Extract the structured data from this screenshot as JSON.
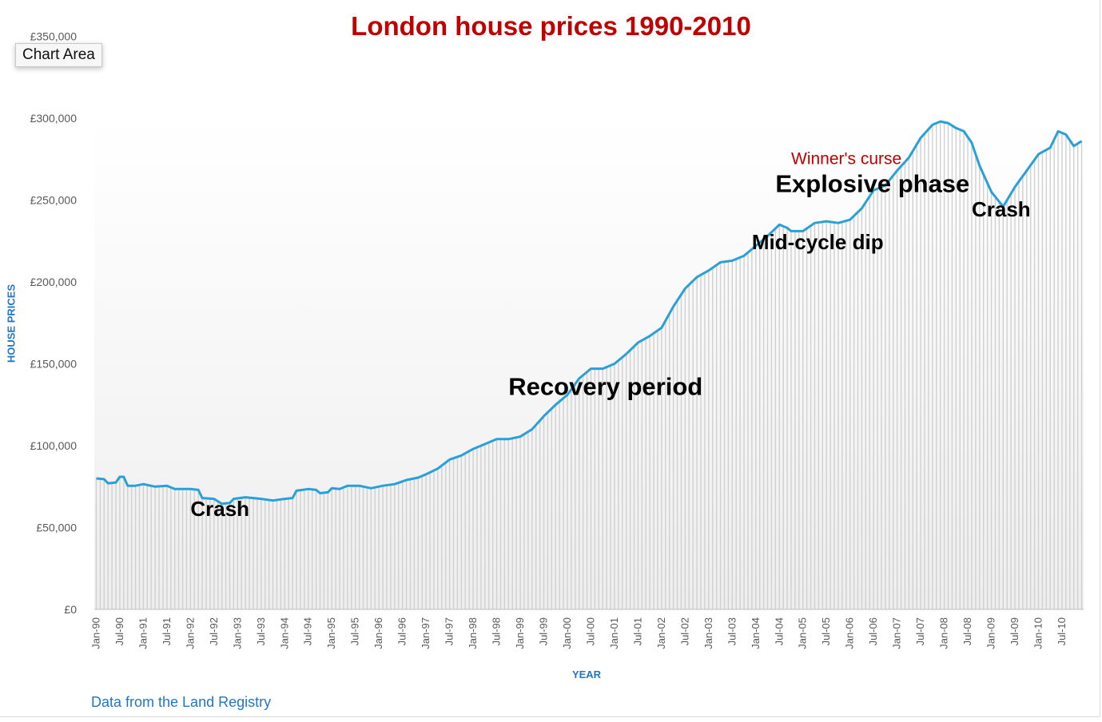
{
  "chart_title": "London house prices 1990-2010",
  "tooltip": "Chart Area",
  "axis": {
    "x_title": "YEAR",
    "y_title": "HOUSE PRICES"
  },
  "source_note": "Data from the Land Registry",
  "colors": {
    "title": "#c00000",
    "line": "#2aa0d8",
    "bars": "#d0d0d0",
    "axis_title": "#1f77c9",
    "winners_curse": "#c00000",
    "annotation": "#000000"
  },
  "chart_data": {
    "type": "line",
    "title": "London house prices 1990-2010",
    "xlabel": "YEAR",
    "ylabel": "HOUSE PRICES",
    "ylim": [
      0,
      350000
    ],
    "y_ticks": [
      "£0",
      "£50,000",
      "£100,000",
      "£150,000",
      "£200,000",
      "£250,000",
      "£300,000",
      "£350,000"
    ],
    "y_tick_values": [
      0,
      50000,
      100000,
      150000,
      200000,
      250000,
      300000,
      350000
    ],
    "x_range": [
      "Jan-90",
      "Dec-10"
    ],
    "x_ticks": [
      "Jan-90",
      "Jul-90",
      "Jan-91",
      "Jul-91",
      "Jan-92",
      "Jul-92",
      "Jan-93",
      "Jul-93",
      "Jan-94",
      "Jul-94",
      "Jan-95",
      "Jul-95",
      "Jan-96",
      "Jul-96",
      "Jan-97",
      "Jul-97",
      "Jan-98",
      "Jul-98",
      "Jan-99",
      "Jul-99",
      "Jan-00",
      "Jul-00",
      "Jan-01",
      "Jul-01",
      "Jan-02",
      "Jul-02",
      "Jan-03",
      "Jul-03",
      "Jan-04",
      "Jul-04",
      "Jan-05",
      "Jul-05",
      "Jan-06",
      "Jul-06",
      "Jan-07",
      "Jul-07",
      "Jan-08",
      "Jul-08",
      "Jan-09",
      "Jul-09",
      "Jan-10",
      "Jul-10"
    ],
    "grid": false,
    "legend": "none",
    "series": [
      {
        "style": "line over monthly columns",
        "points": [
          [
            "Jan-90",
            80000
          ],
          [
            "Mar-90",
            79500
          ],
          [
            "Apr-90",
            77000
          ],
          [
            "Jun-90",
            77500
          ],
          [
            "Jul-90",
            81000
          ],
          [
            "Aug-90",
            81000
          ],
          [
            "Sep-90",
            75500
          ],
          [
            "Nov-90",
            75500
          ],
          [
            "Jan-91",
            76500
          ],
          [
            "Apr-91",
            75000
          ],
          [
            "Jul-91",
            75500
          ],
          [
            "Sep-91",
            73500
          ],
          [
            "Jan-92",
            73500
          ],
          [
            "Mar-92",
            73000
          ],
          [
            "Apr-92",
            68000
          ],
          [
            "Jul-92",
            67500
          ],
          [
            "Sep-92",
            64500
          ],
          [
            "Nov-92",
            65000
          ],
          [
            "Dec-92",
            67500
          ],
          [
            "Mar-93",
            68500
          ],
          [
            "Jul-93",
            67500
          ],
          [
            "Oct-93",
            66500
          ],
          [
            "Jan-94",
            67500
          ],
          [
            "Mar-94",
            68000
          ],
          [
            "Apr-94",
            72500
          ],
          [
            "Jul-94",
            73500
          ],
          [
            "Sep-94",
            73000
          ],
          [
            "Oct-94",
            71000
          ],
          [
            "Dec-94",
            71500
          ],
          [
            "Jan-95",
            74000
          ],
          [
            "Mar-95",
            73500
          ],
          [
            "May-95",
            75500
          ],
          [
            "Aug-95",
            75500
          ],
          [
            "Nov-95",
            74000
          ],
          [
            "Feb-96",
            75500
          ],
          [
            "May-96",
            76500
          ],
          [
            "Aug-96",
            79000
          ],
          [
            "Nov-96",
            80500
          ],
          [
            "Jan-97",
            82500
          ],
          [
            "Apr-97",
            86000
          ],
          [
            "Jul-97",
            91500
          ],
          [
            "Oct-97",
            94000
          ],
          [
            "Jan-98",
            98000
          ],
          [
            "Apr-98",
            101000
          ],
          [
            "Jul-98",
            104000
          ],
          [
            "Oct-98",
            104000
          ],
          [
            "Jan-99",
            105500
          ],
          [
            "Apr-99",
            110000
          ],
          [
            "Jul-99",
            118000
          ],
          [
            "Oct-99",
            125000
          ],
          [
            "Jan-00",
            131000
          ],
          [
            "Apr-00",
            141000
          ],
          [
            "Jul-00",
            147000
          ],
          [
            "Oct-00",
            147000
          ],
          [
            "Jan-01",
            150000
          ],
          [
            "Apr-01",
            156000
          ],
          [
            "Jul-01",
            163000
          ],
          [
            "Oct-01",
            167000
          ],
          [
            "Jan-02",
            172000
          ],
          [
            "Apr-02",
            185000
          ],
          [
            "Jul-02",
            196000
          ],
          [
            "Oct-02",
            203000
          ],
          [
            "Jan-03",
            207000
          ],
          [
            "Apr-03",
            212000
          ],
          [
            "Jul-03",
            213000
          ],
          [
            "Oct-03",
            216000
          ],
          [
            "Jan-04",
            222000
          ],
          [
            "Apr-04",
            228000
          ],
          [
            "Jul-04",
            235000
          ],
          [
            "Sep-04",
            233000
          ],
          [
            "Oct-04",
            231000
          ],
          [
            "Jan-05",
            231000
          ],
          [
            "Apr-05",
            236000
          ],
          [
            "Jul-05",
            237000
          ],
          [
            "Oct-05",
            236000
          ],
          [
            "Jan-06",
            238000
          ],
          [
            "Apr-06",
            245000
          ],
          [
            "Jul-06",
            256000
          ],
          [
            "Oct-06",
            259000
          ],
          [
            "Jan-07",
            268000
          ],
          [
            "Apr-07",
            276000
          ],
          [
            "Jul-07",
            288000
          ],
          [
            "Oct-07",
            296000
          ],
          [
            "Dec-07",
            298000
          ],
          [
            "Feb-08",
            297000
          ],
          [
            "Apr-08",
            294000
          ],
          [
            "Jun-08",
            292000
          ],
          [
            "Aug-08",
            285000
          ],
          [
            "Oct-08",
            271000
          ],
          [
            "Jan-09",
            255000
          ],
          [
            "Apr-09",
            246000
          ],
          [
            "Jul-09",
            258000
          ],
          [
            "Oct-09",
            268000
          ],
          [
            "Jan-10",
            278000
          ],
          [
            "Apr-10",
            282000
          ],
          [
            "Jun-10",
            292000
          ],
          [
            "Aug-10",
            290000
          ],
          [
            "Oct-10",
            283000
          ],
          [
            "Dec-10",
            286000
          ]
        ]
      }
    ],
    "annotations": [
      {
        "text": "Crash",
        "at": [
          "Jan-92",
          57000
        ],
        "style": "bold"
      },
      {
        "text": "Recovery period",
        "at": [
          "Oct-98",
          131000
        ],
        "style": "bold-large"
      },
      {
        "text": "Mid-cycle dip",
        "at": [
          "Dec-03",
          220000
        ],
        "style": "bold"
      },
      {
        "text": "Explosive phase",
        "at": [
          "Jun-04",
          255000
        ],
        "style": "bold-large"
      },
      {
        "text": "Winner's curse",
        "at": [
          "Oct-04",
          272000
        ],
        "style": "red"
      },
      {
        "text": "Crash",
        "at": [
          "Aug-08",
          240000
        ],
        "style": "bold"
      }
    ]
  }
}
